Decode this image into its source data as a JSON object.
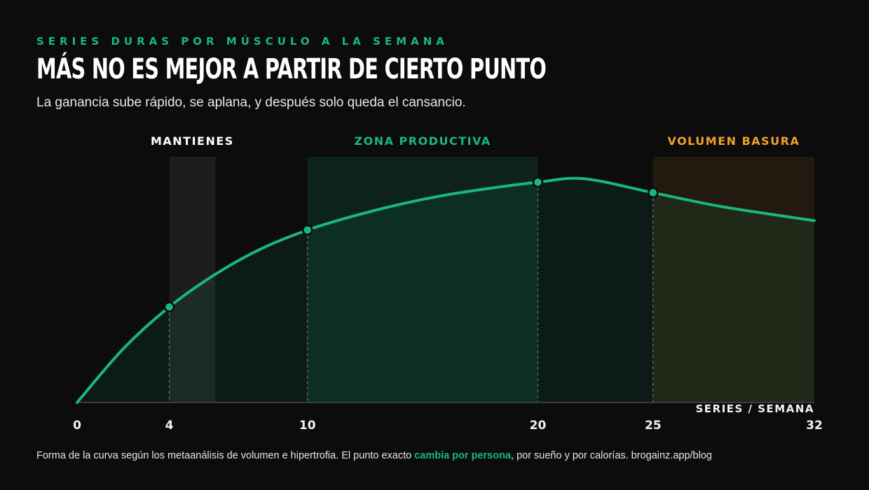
{
  "header": {
    "kicker": "SERIES DURAS POR MÚSCULO A LA SEMANA",
    "title": "MÁS NO ES MEJOR A PARTIR DE CIERTO PUNTO",
    "subtitle": "La ganancia sube rápido, se aplana, y después solo queda el cansancio."
  },
  "footer": {
    "text_before": "Forma de la curva según los metaanálisis de volumen e hipertrofia. El punto exacto ",
    "highlight": "cambia por persona",
    "text_after": ", por sueño y por calorías. brogainz.app/blog"
  },
  "colors": {
    "background": "#0c0c0c",
    "accent_green": "#19b77e",
    "orange": "#f0a12a",
    "white": "#ffffff"
  },
  "chart_data": {
    "type": "area",
    "xlabel": "SERIES / SEMANA",
    "ylabel": "",
    "xlim": [
      0,
      32
    ],
    "ylim": [
      0,
      100
    ],
    "grid": false,
    "x_ticks": [
      0,
      4,
      10,
      20,
      25,
      32
    ],
    "curve": {
      "x": [
        0,
        2,
        4,
        6,
        8,
        10,
        12,
        14,
        16,
        18,
        20,
        22,
        25,
        28,
        32
      ],
      "y": [
        0,
        23,
        41,
        55,
        66,
        74,
        80,
        85,
        89,
        92,
        94.5,
        96,
        90,
        84,
        78
      ]
    },
    "markers": [
      {
        "x": 4,
        "y": 41
      },
      {
        "x": 10,
        "y": 74
      },
      {
        "x": 20,
        "y": 94.5
      },
      {
        "x": 25,
        "y": 90
      }
    ],
    "zones": [
      {
        "label": "MANTIENES",
        "x_start": 4,
        "x_end": 6,
        "color": "#ffffff"
      },
      {
        "label": "ZONA PRODUCTIVA",
        "x_start": 10,
        "x_end": 20,
        "color": "#19b77e"
      },
      {
        "label": "VOLUMEN BASURA",
        "x_start": 25,
        "x_end": 32,
        "color": "#f0a12a"
      }
    ]
  }
}
